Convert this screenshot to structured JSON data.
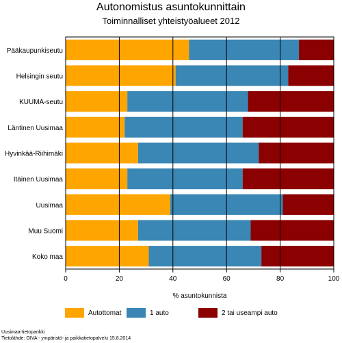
{
  "chart_data": {
    "type": "bar",
    "orientation": "horizontal",
    "stacked": true,
    "title": "Autonomistus asuntokunnittain",
    "subtitle": "Toiminnalliset yhteistyöalueet 2012",
    "xlabel": "% asuntokunnista",
    "ylabel": "",
    "xlim": [
      0,
      100
    ],
    "xticks": [
      0,
      20,
      40,
      60,
      80,
      100
    ],
    "grid": "vertical",
    "legend_position": "bottom",
    "categories": [
      "Pääkaupunkiseutu",
      "Helsingin seutu",
      "KUUMA-seutu",
      "Läntinen Uusimaa",
      "Hyvinkää-Riihimäki",
      "Itäinen Uusimaa",
      "Uusimaa",
      "Muu Suomi",
      "Koko maa"
    ],
    "series": [
      {
        "name": "Autottomat",
        "color": "#ffa500",
        "values": [
          46,
          41,
          23,
          22,
          27,
          23,
          39,
          27,
          31
        ]
      },
      {
        "name": "1 auto",
        "color": "#3a86b4",
        "values": [
          41,
          42,
          45,
          44,
          45,
          43,
          42,
          42,
          42
        ]
      },
      {
        "name": "2 tai useampi auto",
        "color": "#8b0000",
        "values": [
          13,
          17,
          32,
          34,
          28,
          34,
          19,
          31,
          27
        ]
      }
    ]
  },
  "source": {
    "line1": "Uusimaa-tietopankki",
    "line2": "Tietolähde: OIVA - ympäristö- ja paikkatietopalvelu 15.8.2014"
  }
}
